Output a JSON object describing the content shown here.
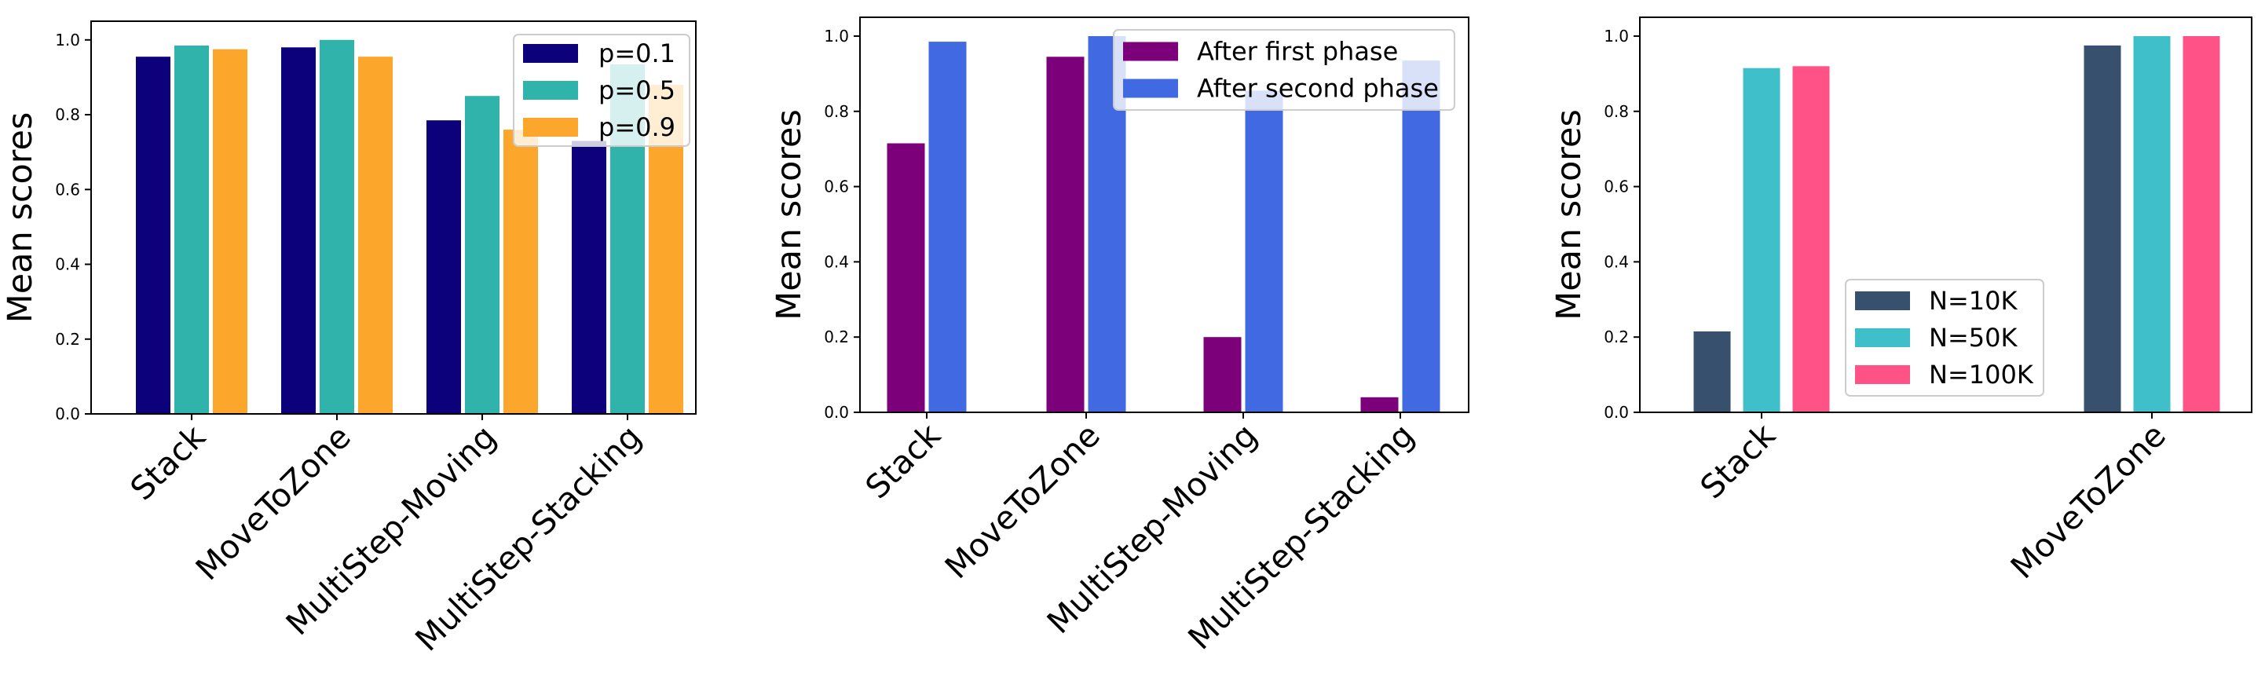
{
  "chart_data": [
    {
      "type": "bar",
      "ylabel": "Mean scores",
      "ylim": [
        0,
        1.05
      ],
      "yticks": [
        "0.0",
        "0.2",
        "0.4",
        "0.6",
        "0.8",
        "1.0"
      ],
      "categories": [
        "Stack",
        "MoveToZone",
        "MultiStep-Moving",
        "MultiStep-Stacking"
      ],
      "series": [
        {
          "name": "p=0.1",
          "color": "#0c007b",
          "values": [
            0.955,
            0.98,
            0.785,
            0.73
          ]
        },
        {
          "name": "p=0.5",
          "color": "#2fb3aa",
          "values": [
            0.985,
            1.0,
            0.85,
            0.935
          ]
        },
        {
          "name": "p=0.9",
          "color": "#fca62b",
          "values": [
            0.975,
            0.955,
            0.76,
            0.88
          ]
        }
      ],
      "legend_position": "top-right"
    },
    {
      "type": "bar",
      "ylabel": "Mean scores",
      "ylim": [
        0,
        1.05
      ],
      "yticks": [
        "0.0",
        "0.2",
        "0.4",
        "0.6",
        "0.8",
        "1.0"
      ],
      "categories": [
        "Stack",
        "MoveToZone",
        "MultiStep-Moving",
        "MultiStep-Stacking"
      ],
      "series": [
        {
          "name": "After first phase",
          "color": "#7b0079",
          "values": [
            0.715,
            0.945,
            0.2,
            0.04
          ]
        },
        {
          "name": "After second phase",
          "color": "#4169e1",
          "values": [
            0.985,
            1.0,
            0.855,
            0.935
          ]
        }
      ],
      "legend_position": "top-right"
    },
    {
      "type": "bar",
      "ylabel": "Mean scores",
      "ylim": [
        0,
        1.05
      ],
      "yticks": [
        "0.0",
        "0.2",
        "0.4",
        "0.6",
        "0.8",
        "1.0"
      ],
      "categories": [
        "Stack",
        "MoveToZone"
      ],
      "series": [
        {
          "name": "N=10K",
          "color": "#36506d",
          "values": [
            0.215,
            0.975
          ]
        },
        {
          "name": "N=50K",
          "color": "#3ebfca",
          "values": [
            0.915,
            1.0
          ]
        },
        {
          "name": "N=100K",
          "color": "#ff5287",
          "values": [
            0.92,
            1.0
          ]
        }
      ],
      "legend_position": "center"
    }
  ]
}
